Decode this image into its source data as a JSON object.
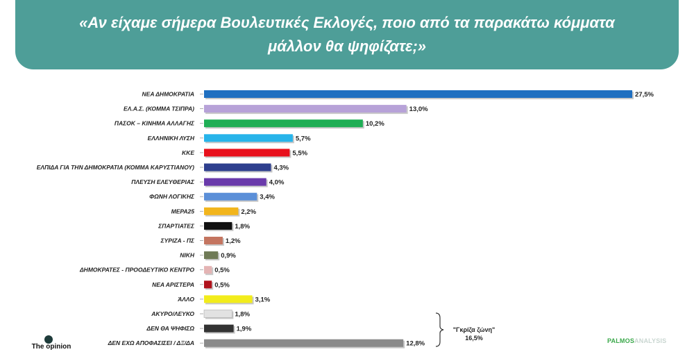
{
  "title": {
    "line1": "«Αν είχαμε σήμερα Βουλευτικές Εκλογές, ποιο από τα παρακάτω κόμματα",
    "line2": "μάλλον θα ψηφίζατε;»"
  },
  "chart_data": {
    "type": "bar",
    "orientation": "horizontal",
    "categories": [
      "ΝΕΑ ΔΗΜΟΚΡΑΤΙΑ",
      "ΕΛ.Α.Σ. (ΚΟΜΜΑ ΤΣΙΠΡΑ)",
      "ΠΑΣΟΚ – ΚΙΝΗΜΑ ΑΛΛΑΓΗΣ",
      "ΕΛΛΗΝΙΚΗ ΛΥΣΗ",
      "ΚΚΕ",
      "ΕΛΠΙΔΑ ΓΙΑ ΤΗΝ ΔΗΜΟΚΡΑΤΙΑ (ΚΟΜΜΑ ΚΑΡΥΣΤΙΑΝΟΥ)",
      "ΠΛΕΥΣΗ ΕΛΕΥΘΕΡΙΑΣ",
      "ΦΩΝΗ ΛΟΓΙΚΗΣ",
      "ΜΕΡΑ25",
      "ΣΠΑΡΤΙΑΤΕΣ",
      "ΣΥΡΙΖΑ - ΠΣ",
      "ΝΙΚΗ",
      "ΔΗΜΟΚΡΑΤΕΣ - ΠΡΟΟΔΕΥΤΙΚΟ ΚΕΝΤΡΟ",
      "ΝΕΑ ΑΡΙΣΤΕΡΑ",
      "ΆΛΛΟ",
      "ΑΚΥΡΟ/ΛΕΥΚΟ",
      "ΔΕΝ ΘΑ ΨΗΦΙΣΩ",
      "ΔΕΝ ΕΧΩ ΑΠΟΦΑΣΙΣΕΙ / ΔΞ/ΔΑ"
    ],
    "values": [
      27.5,
      13.0,
      10.2,
      5.7,
      5.5,
      4.3,
      4.0,
      3.4,
      2.2,
      1.8,
      1.2,
      0.9,
      0.5,
      0.5,
      3.1,
      1.8,
      1.9,
      12.8
    ],
    "value_labels": [
      "27,5%",
      "13,0%",
      "10,2%",
      "5,7%",
      "5,5%",
      "4,3%",
      "4,0%",
      "3,4%",
      "2,2%",
      "1,8%",
      "1,2%",
      "0,9%",
      "0,5%",
      "0,5%",
      "3,1%",
      "1,8%",
      "1,9%",
      "12,8%"
    ],
    "colors": [
      "#1f6fc0",
      "#b7a2d8",
      "#1fae55",
      "#27b4ea",
      "#e8101c",
      "#2e3f8e",
      "#6a3aab",
      "#5b8fd8",
      "#f2b51c",
      "#111111",
      "#c47560",
      "#6f7a56",
      "#e4b4b4",
      "#b0121c",
      "#f2ec1c",
      "#e2e2e2",
      "#333333",
      "#8a8a8a"
    ],
    "xlim": [
      0,
      27.5
    ],
    "grid": false,
    "annotation": {
      "label": "\"Γκρίζα ζώνη\"",
      "value": "16,5%"
    }
  },
  "branding": {
    "left_name": "The opinion",
    "right_part1": "PALMOS",
    "right_part2": "ANALYSIS"
  }
}
